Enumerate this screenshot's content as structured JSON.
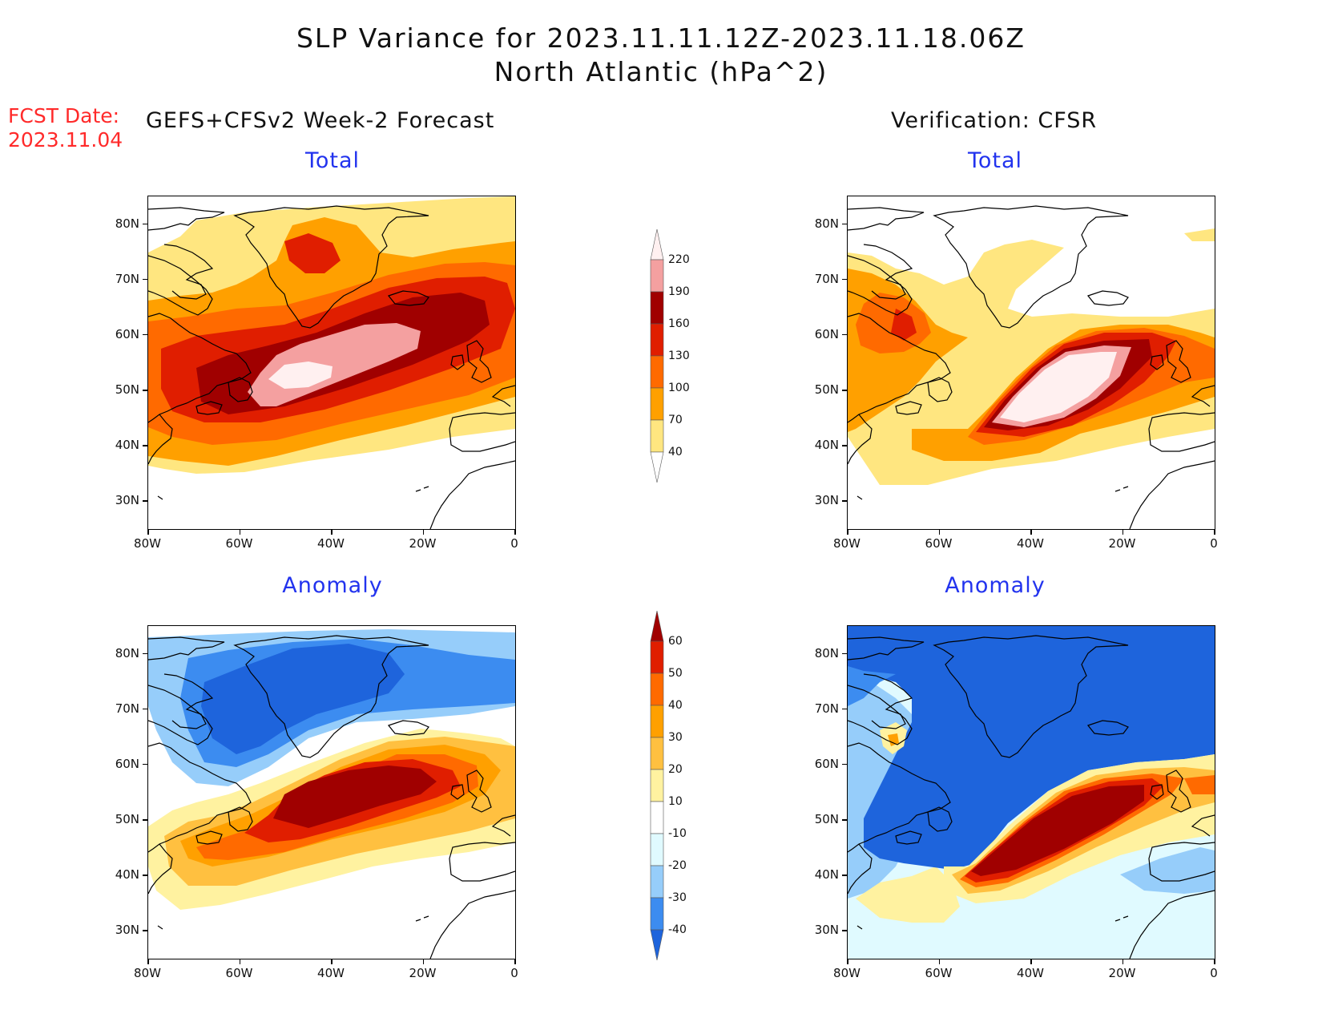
{
  "title": {
    "line1": "SLP Variance for 2023.11.11.12Z-2023.11.18.06Z",
    "line2": "North Atlantic (hPa^2)"
  },
  "fcst": {
    "line1": "FCST Date:",
    "line2": "2023.11.04"
  },
  "columns": {
    "left": "GEFS+CFSv2 Week-2 Forecast",
    "right": "Verification: CFSR"
  },
  "panels": {
    "forecast_total": {
      "title": "Total"
    },
    "verification_total": {
      "title": "Total"
    },
    "forecast_anomaly": {
      "title": "Anomaly"
    },
    "verification_anomaly": {
      "title": "Anomaly"
    }
  },
  "axes": {
    "lat_labels": [
      "80N",
      "70N",
      "60N",
      "50N",
      "40N",
      "30N"
    ],
    "lon_labels": [
      "80W",
      "60W",
      "40W",
      "20W",
      "0"
    ],
    "lat_range": [
      25,
      85
    ],
    "lon_range": [
      -80,
      0
    ]
  },
  "colorbars": {
    "total": {
      "levels": [
        "220",
        "190",
        "160",
        "130",
        "100",
        "70",
        "40"
      ],
      "colors": [
        "#fff0f0",
        "#f4a0a0",
        "#a00000",
        "#e01e00",
        "#ff6a00",
        "#ffa000",
        "#ffe680"
      ]
    },
    "anomaly": {
      "levels": [
        "60",
        "50",
        "40",
        "30",
        "20",
        "10",
        "-10",
        "-20",
        "-30",
        "-40"
      ],
      "colors": [
        "#a00000",
        "#e01e00",
        "#ff6a00",
        "#ffa000",
        "#ffc040",
        "#fff2a0",
        "#ffffff",
        "#e0faff",
        "#96cdfa",
        "#3c8cf0",
        "#1e64dc"
      ]
    }
  }
}
